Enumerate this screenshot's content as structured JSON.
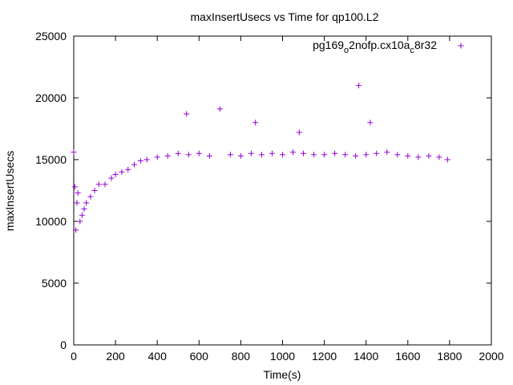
{
  "chart_data": {
    "type": "scatter",
    "title": "maxInsertUsecs vs Time for qp100.L2",
    "xlabel": "Time(s)",
    "ylabel": "maxInsertUsecs",
    "xlim": [
      0,
      2000
    ],
    "ylim": [
      0,
      25000
    ],
    "xticks": [
      "0",
      "200",
      "400",
      "600",
      "800",
      "1000",
      "1200",
      "1400",
      "1600",
      "1800",
      "2000"
    ],
    "yticks": [
      "0",
      "5000",
      "10000",
      "15000",
      "20000",
      "25000"
    ],
    "grid": false,
    "legend_position": "top-right",
    "legend": {
      "label_main": "pg169",
      "label_sub1": "o",
      "label_mid": "2nofp.cx10a",
      "label_sub2": "c",
      "label_end": "8r32"
    },
    "marker": "+",
    "color": "#9400d3",
    "series": [
      {
        "name": "pg169_o2nofp.cx10a_c8r32",
        "x": [
          0,
          5,
          10,
          15,
          20,
          30,
          40,
          50,
          60,
          80,
          100,
          120,
          150,
          180,
          200,
          230,
          260,
          290,
          320,
          350,
          400,
          450,
          500,
          540,
          550,
          600,
          650,
          700,
          750,
          800,
          850,
          870,
          900,
          950,
          1000,
          1050,
          1080,
          1100,
          1150,
          1200,
          1250,
          1300,
          1350,
          1365,
          1400,
          1420,
          1450,
          1500,
          1550,
          1600,
          1650,
          1700,
          1750,
          1790
        ],
        "y": [
          15600,
          12800,
          9300,
          11500,
          12300,
          10000,
          10500,
          11000,
          11500,
          12000,
          12500,
          13000,
          13000,
          13500,
          13800,
          14000,
          14200,
          14600,
          14900,
          15000,
          15200,
          15300,
          15500,
          18700,
          15400,
          15500,
          15300,
          19100,
          15400,
          15300,
          15500,
          18000,
          15400,
          15500,
          15400,
          15600,
          17200,
          15500,
          15400,
          15400,
          15500,
          15400,
          15300,
          21000,
          15400,
          18000,
          15500,
          15600,
          15400,
          15300,
          15200,
          15300,
          15200,
          15000
        ]
      }
    ]
  }
}
